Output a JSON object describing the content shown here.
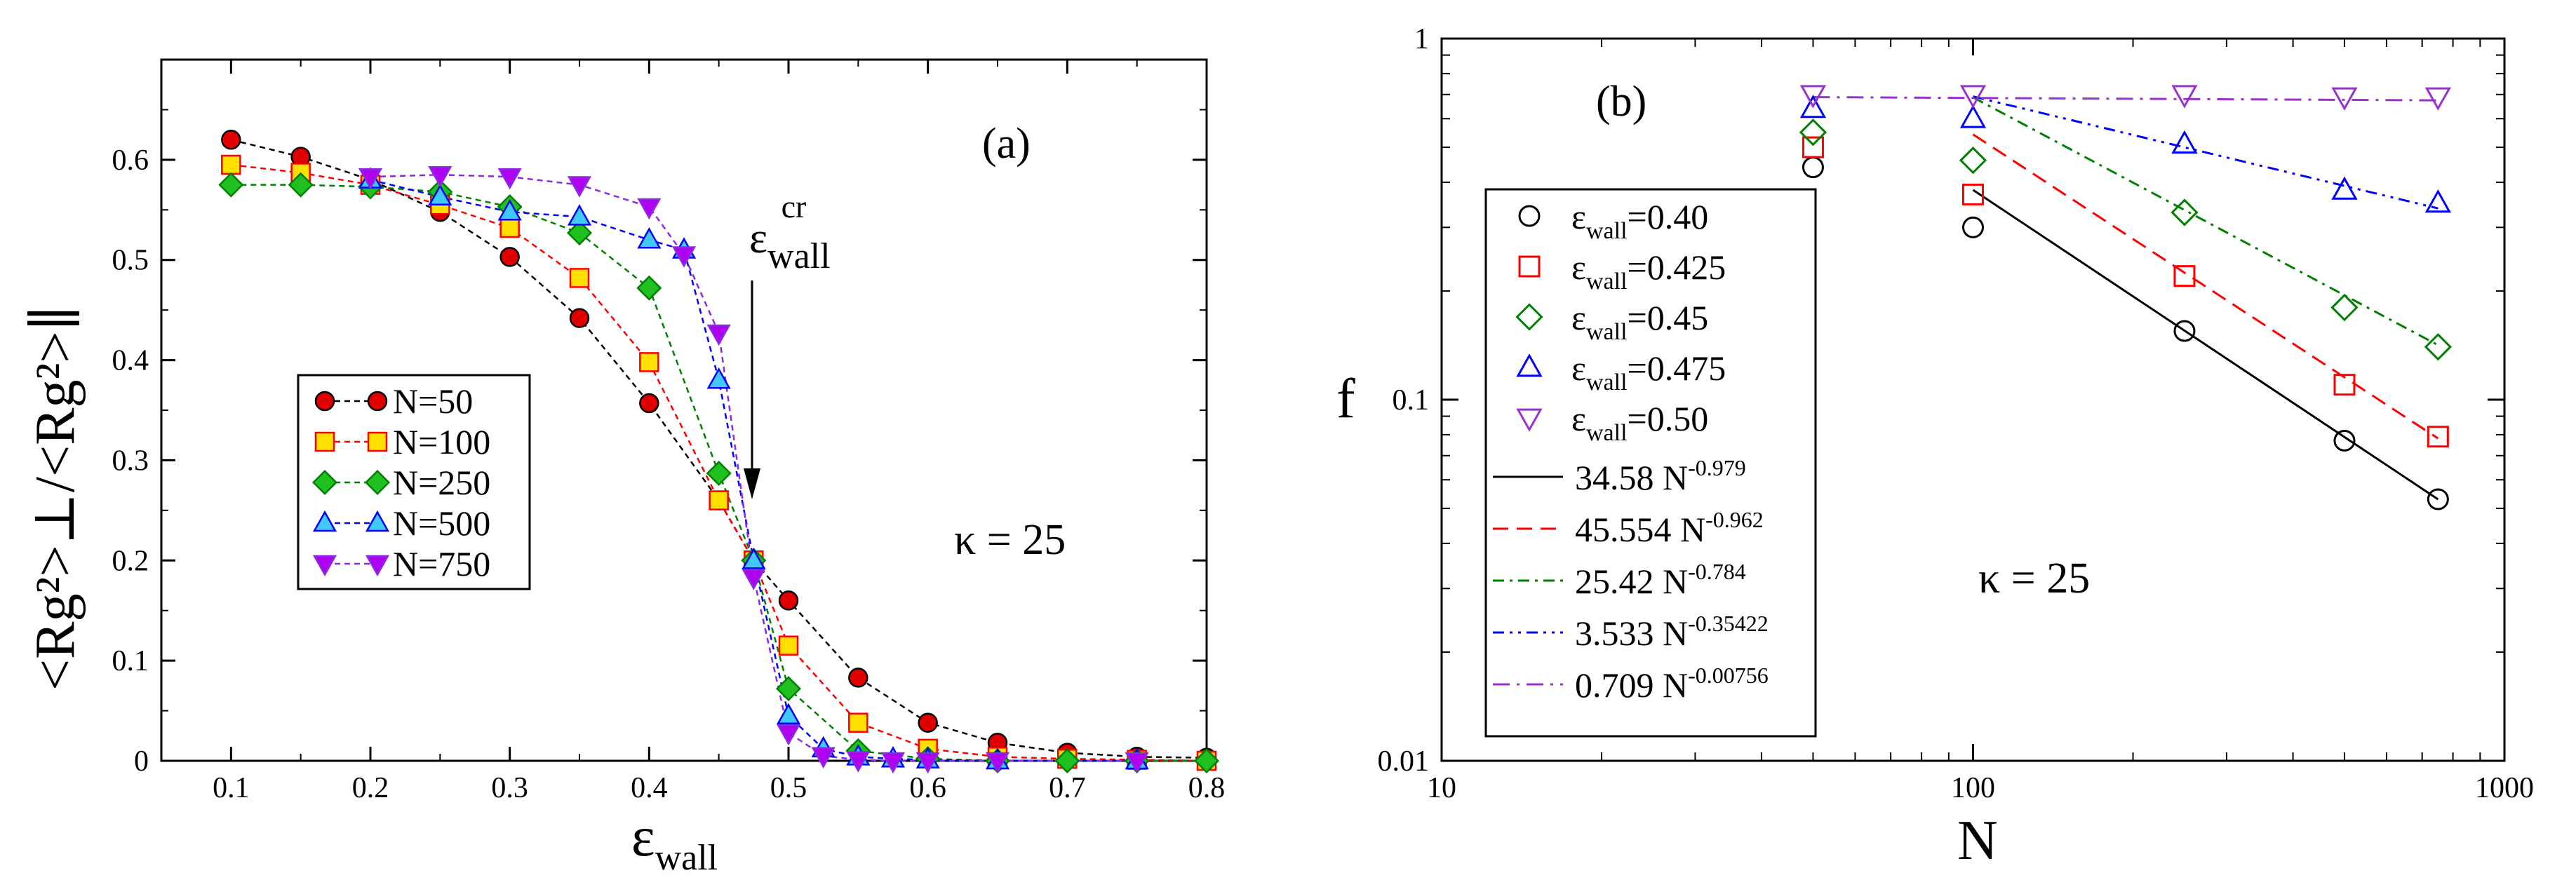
{
  "chart_data": [
    {
      "panel": "a",
      "type": "line",
      "panel_label": "(a)",
      "annotation_kappa": "κ = 25",
      "annotation_critical": {
        "base": "ε",
        "sub": "wall",
        "sup": "cr"
      },
      "xlabel": {
        "base": "ε",
        "sub": "wall"
      },
      "ylabel": "<Rg²>⊥/<Rg²>∥",
      "xlim": [
        0.05,
        0.8
      ],
      "ylim": [
        0,
        0.7
      ],
      "xticks": [
        "0.1",
        "0.2",
        "0.3",
        "0.4",
        "0.5",
        "0.6",
        "0.7",
        "0.8"
      ],
      "yticks": [
        "0",
        "0.1",
        "0.2",
        "0.3",
        "0.4",
        "0.5",
        "0.6"
      ],
      "legend_position": "center-left",
      "series": [
        {
          "name": "N=50",
          "marker": "circle",
          "color": "#e00000",
          "x": [
            0.1,
            0.15,
            0.2,
            0.25,
            0.3,
            0.35,
            0.4,
            0.45,
            0.475,
            0.5,
            0.55,
            0.6,
            0.65,
            0.7,
            0.75,
            0.8
          ],
          "y": [
            0.62,
            0.603,
            0.58,
            0.548,
            0.503,
            0.442,
            0.357,
            0.26,
            0.2,
            0.16,
            0.083,
            0.038,
            0.018,
            0.008,
            0.004,
            0.003
          ]
        },
        {
          "name": "N=100",
          "marker": "square",
          "color": "#ffe000",
          "x": [
            0.1,
            0.15,
            0.2,
            0.25,
            0.3,
            0.35,
            0.4,
            0.45,
            0.475,
            0.5,
            0.55,
            0.6,
            0.65,
            0.7,
            0.75,
            0.8
          ],
          "y": [
            0.595,
            0.587,
            0.575,
            0.555,
            0.532,
            0.482,
            0.398,
            0.26,
            0.2,
            0.115,
            0.038,
            0.012,
            0.004,
            0.002,
            0.001,
            0.0
          ]
        },
        {
          "name": "N=250",
          "marker": "diamond",
          "color": "#20c020",
          "x": [
            0.1,
            0.15,
            0.2,
            0.25,
            0.3,
            0.35,
            0.4,
            0.45,
            0.475,
            0.5,
            0.55,
            0.6,
            0.65,
            0.7,
            0.75,
            0.8
          ],
          "y": [
            0.575,
            0.575,
            0.573,
            0.568,
            0.553,
            0.527,
            0.472,
            0.287,
            0.2,
            0.072,
            0.01,
            0.002,
            0.0,
            0.0,
            0.0,
            0.0
          ]
        },
        {
          "name": "N=500",
          "marker": "triangle-up",
          "color": "#40c8ff",
          "x": [
            0.2,
            0.25,
            0.3,
            0.35,
            0.4,
            0.425,
            0.45,
            0.475,
            0.5,
            0.525,
            0.55,
            0.575,
            0.6,
            0.65,
            0.75
          ],
          "y": [
            0.58,
            0.563,
            0.548,
            0.543,
            0.52,
            0.51,
            0.38,
            0.2,
            0.045,
            0.012,
            0.004,
            0.002,
            0.001,
            0.0,
            0.0
          ]
        },
        {
          "name": "N=750",
          "marker": "triangle-down",
          "color": "#b000f0",
          "x": [
            0.2,
            0.25,
            0.3,
            0.35,
            0.4,
            0.425,
            0.45,
            0.475,
            0.5,
            0.525,
            0.55,
            0.575,
            0.6,
            0.65,
            0.75
          ],
          "y": [
            0.583,
            0.585,
            0.583,
            0.575,
            0.553,
            0.505,
            0.427,
            0.183,
            0.028,
            0.005,
            0.001,
            0.0,
            0.0,
            0.0,
            0.0
          ]
        }
      ]
    },
    {
      "panel": "b",
      "type": "scatter",
      "panel_label": "(b)",
      "annotation_kappa": "κ = 25",
      "xlabel": "N",
      "ylabel": "f",
      "xscale": "log",
      "yscale": "log",
      "xlim": [
        10,
        1000
      ],
      "ylim": [
        0.01,
        1
      ],
      "xticks": [
        "10",
        "100",
        "1000"
      ],
      "yticks": [
        "0.01",
        "0.1",
        "1"
      ],
      "legend_position": "left",
      "series": [
        {
          "name": "εwall=0.40",
          "label_base": "ε",
          "label_sub": "wall",
          "label_val": "=0.40",
          "marker": "circle",
          "color": "#000000",
          "x": [
            50,
            100,
            250,
            500,
            750
          ],
          "y": [
            0.44,
            0.3,
            0.155,
            0.077,
            0.053
          ]
        },
        {
          "name": "εwall=0.425",
          "label_base": "ε",
          "label_sub": "wall",
          "label_val": "=0.425",
          "marker": "square",
          "color": "#ff0000",
          "x": [
            50,
            100,
            250,
            500,
            750
          ],
          "y": [
            0.5,
            0.37,
            0.22,
            0.11,
            0.079
          ]
        },
        {
          "name": "εwall=0.45",
          "label_base": "ε",
          "label_sub": "wall",
          "label_val": "=0.45",
          "marker": "diamond",
          "color": "#008000",
          "x": [
            50,
            100,
            250,
            500,
            750
          ],
          "y": [
            0.55,
            0.46,
            0.33,
            0.18,
            0.14
          ]
        },
        {
          "name": "εwall=0.475",
          "label_base": "ε",
          "label_sub": "wall",
          "label_val": "=0.475",
          "marker": "triangle-up",
          "color": "#0000ff",
          "x": [
            50,
            100,
            250,
            500,
            750
          ],
          "y": [
            0.64,
            0.6,
            0.51,
            0.38,
            0.35
          ]
        },
        {
          "name": "εwall=0.50",
          "label_base": "ε",
          "label_sub": "wall",
          "label_val": "=0.50",
          "marker": "triangle-down",
          "color": "#9932cc",
          "x": [
            50,
            100,
            250,
            500,
            750
          ],
          "y": [
            0.7,
            0.7,
            0.7,
            0.69,
            0.69
          ]
        }
      ],
      "fits": [
        {
          "label_main": "34.58 N",
          "label_exp": "-0.979",
          "a": 34.58,
          "b": -0.979,
          "x_range": [
            100,
            750
          ],
          "color": "#000000",
          "dash": ""
        },
        {
          "label_main": "45.554 N",
          "label_exp": "-0.962",
          "a": 45.554,
          "b": -0.962,
          "x_range": [
            100,
            750
          ],
          "color": "#ff0000",
          "dash": "22,12"
        },
        {
          "label_main": "25.42 N",
          "label_exp": "-0.784",
          "a": 25.42,
          "b": -0.784,
          "x_range": [
            100,
            750
          ],
          "color": "#008000",
          "dash": "16,8,4,8"
        },
        {
          "label_main": "3.533 N",
          "label_exp": "-0.35422",
          "a": 3.533,
          "b": -0.35422,
          "x_range": [
            100,
            750
          ],
          "color": "#0000ff",
          "dash": "16,8,4,8,4,8"
        },
        {
          "label_main": "0.709 N",
          "label_exp": "-0.00756",
          "a": 0.709,
          "b": -0.00756,
          "x_range": [
            50,
            750
          ],
          "color": "#9932cc",
          "dash": "24,10,4,10"
        }
      ]
    }
  ]
}
